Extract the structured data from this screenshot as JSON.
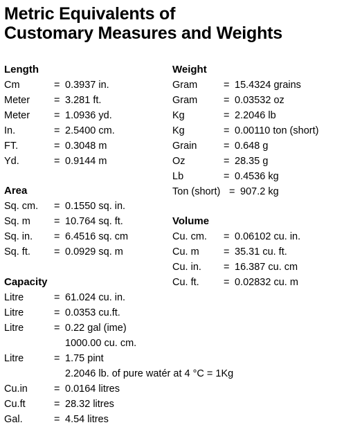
{
  "title": {
    "line1": "Metric Equivalents of",
    "line2": "Customary Measures and Weights"
  },
  "length": {
    "heading": "Length",
    "rows": [
      {
        "unit": "Cm",
        "eq": "=",
        "value": "0.3937 in."
      },
      {
        "unit": "Meter",
        "eq": "=",
        "value": "3.281 ft."
      },
      {
        "unit": "Meter",
        "eq": "=",
        "value": "1.0936 yd."
      },
      {
        "unit": "In.",
        "eq": "=",
        "value": "2.5400 cm."
      },
      {
        "unit": "FT.",
        "eq": "=",
        "value": "0.3048 m"
      },
      {
        "unit": "Yd.",
        "eq": "=",
        "value": "0.9144 m"
      }
    ]
  },
  "area": {
    "heading": "Area",
    "rows": [
      {
        "unit": "Sq. cm.",
        "eq": "=",
        "value": "0.1550 sq. in."
      },
      {
        "unit": "Sq. m",
        "eq": "=",
        "value": "10.764 sq. ft."
      },
      {
        "unit": "Sq. in.",
        "eq": "=",
        "value": "6.4516 sq. cm"
      },
      {
        "unit": "Sq. ft.",
        "eq": "=",
        "value": "0.0929 sq. m"
      }
    ]
  },
  "capacity": {
    "heading": "Capacity",
    "rows": [
      {
        "unit": "Litre",
        "eq": "=",
        "value": "61.024 cu. in."
      },
      {
        "unit": "Litre",
        "eq": "=",
        "value": "0.0353 cu.ft."
      },
      {
        "unit": "Litre",
        "eq": "=",
        "value": "0.22 gal (ime)"
      },
      {
        "unit": "",
        "eq": "",
        "value": "1000.00 cu. cm."
      },
      {
        "unit": "Litre",
        "eq": "=",
        "value": "1.75 pint"
      },
      {
        "unit": "",
        "eq": "",
        "value": "2.2046 lb. of pure watér at 4 °C = 1Kg"
      },
      {
        "unit": "Cu.in",
        "eq": "=",
        "value": "0.0164 litres"
      },
      {
        "unit": "Cu.ft",
        "eq": "=",
        "value": "28.32 litres"
      },
      {
        "unit": "Gal.",
        "eq": "=",
        "value": "4.54 litres"
      }
    ]
  },
  "weight": {
    "heading": "Weight",
    "rows": [
      {
        "unit": "Gram",
        "eq": "=",
        "value": "15.4324 grains"
      },
      {
        "unit": "Gram",
        "eq": "=",
        "value": "0.03532 oz"
      },
      {
        "unit": "Kg",
        "eq": "=",
        "value": "2.2046 lb"
      },
      {
        "unit": "Kg",
        "eq": "=",
        "value": "0.00110 ton (short)"
      },
      {
        "unit": "Grain",
        "eq": "=",
        "value": "0.648 g"
      },
      {
        "unit": "Oz",
        "eq": "=",
        "value": "28.35 g"
      },
      {
        "unit": "Lb",
        "eq": "=",
        "value": "0.4536 kg"
      },
      {
        "unit": "Ton (short)",
        "eq": "=",
        "value": "907.2 kg"
      }
    ]
  },
  "volume": {
    "heading": "Volume",
    "rows": [
      {
        "unit": "Cu. cm.",
        "eq": "=",
        "value": "0.06102 cu. in."
      },
      {
        "unit": "Cu. m",
        "eq": "=",
        "value": "35.31 cu. ft."
      },
      {
        "unit": "Cu. in.",
        "eq": "=",
        "value": "16.387 cu. cm"
      },
      {
        "unit": "Cu. ft.",
        "eq": "=",
        "value": "0.02832 cu. m"
      }
    ]
  }
}
